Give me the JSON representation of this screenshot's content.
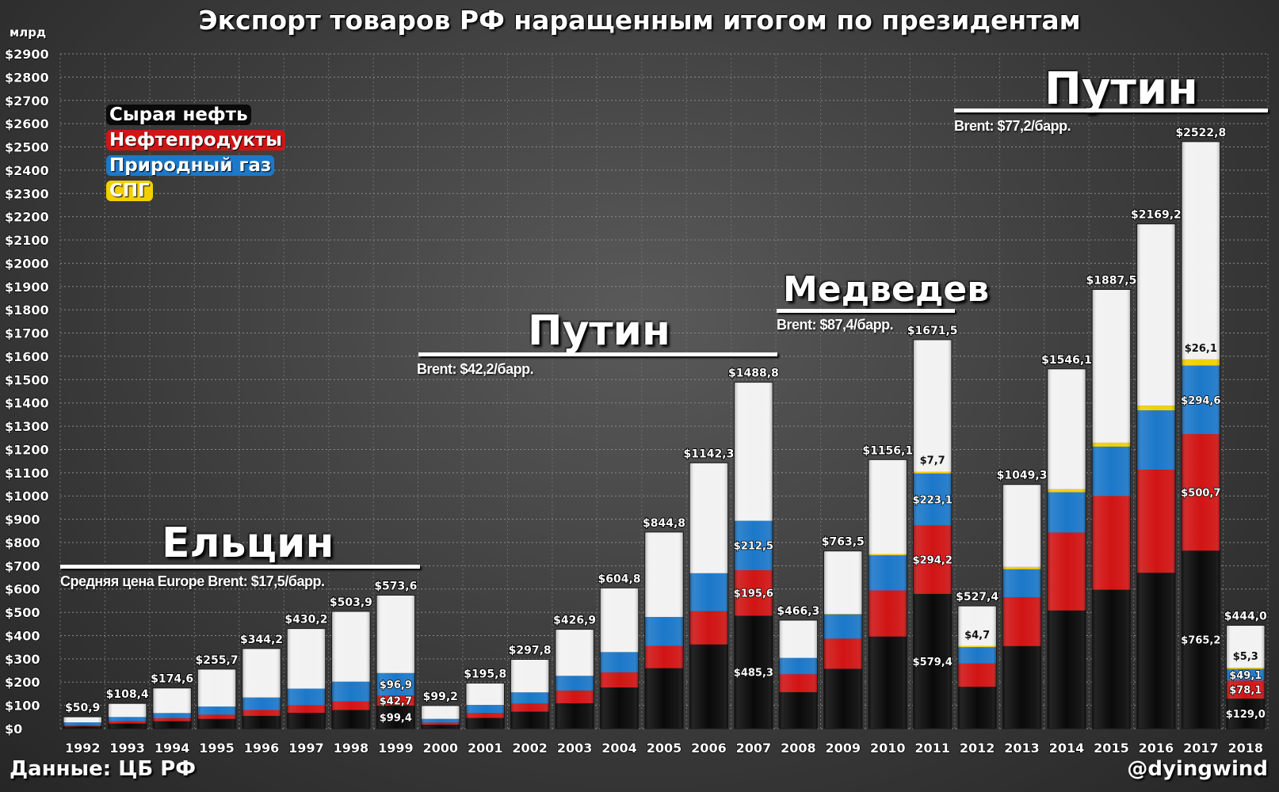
{
  "title": "Экспорт товаров РФ наращенным итогом по президентам",
  "unit_label": "млрд",
  "legend": [
    {
      "label": "Сырая нефть",
      "color": "#0a0a0a"
    },
    {
      "label": "Нефтепродукты",
      "color": "#d11414"
    },
    {
      "label": "Природный газ",
      "color": "#1c78c9"
    },
    {
      "label": "СПГ",
      "color": "#f2d000"
    }
  ],
  "eras": [
    {
      "name": "Ельцин",
      "brent": "Средняя цена Europe Brent: $17,5/барр.",
      "from": "1992",
      "to": "1999"
    },
    {
      "name": "Путин",
      "brent": "Brent: $42,2/барр.",
      "from": "2000",
      "to": "2007"
    },
    {
      "name": "Медведев",
      "brent": "Brent: $87,4/барр.",
      "from": "2008",
      "to": "2011"
    },
    {
      "name": "Путин",
      "brent": "Brent: $77,2/барр.",
      "from": "2012",
      "to": "2018"
    }
  ],
  "footer": {
    "source": "Данные: ЦБ РФ",
    "author": "@dyingwind"
  },
  "chart_data": {
    "type": "bar",
    "stacked": true,
    "ylabel": "млрд",
    "ylim": [
      0,
      2900
    ],
    "yticks": [
      "$0",
      "$100",
      "$200",
      "$300",
      "$400",
      "$500",
      "$600",
      "$700",
      "$800",
      "$900",
      "$1000",
      "$1100",
      "$1200",
      "$1300",
      "$1400",
      "$1500",
      "$1600",
      "$1700",
      "$1800",
      "$1900",
      "$2000",
      "$2100",
      "$2200",
      "$2300",
      "$2400",
      "$2500",
      "$2600",
      "$2700",
      "$2800",
      "$2900"
    ],
    "categories": [
      "1992",
      "1993",
      "1994",
      "1995",
      "1996",
      "1997",
      "1998",
      "1999",
      "2000",
      "2001",
      "2002",
      "2003",
      "2004",
      "2005",
      "2006",
      "2007",
      "2008",
      "2009",
      "2010",
      "2011",
      "2012",
      "2013",
      "2014",
      "2015",
      "2016",
      "2017",
      "2018"
    ],
    "totals": [
      50.9,
      108.4,
      174.6,
      255.7,
      344.2,
      430.2,
      503.9,
      573.6,
      99.2,
      195.8,
      297.8,
      426.9,
      604.8,
      844.8,
      1142.3,
      1488.8,
      466.3,
      763.5,
      1156.1,
      1671.5,
      527.4,
      1049.3,
      1546.1,
      1887.5,
      2169.2,
      2522.8,
      444.0
    ],
    "total_labels": [
      "$50,9",
      "$108,4",
      "$174,6",
      "$255,7",
      "$344,2",
      "$430,2",
      "$503,9",
      "$573,6",
      "$99,2",
      "$195,8",
      "$297,8",
      "$426,9",
      "$604,8",
      "$844,8",
      "$1142,3",
      "$1488,8",
      "$466,3",
      "$763,5",
      "$1156,1",
      "$1671,5",
      "$527,4",
      "$1049,3",
      "$1546,1",
      "$1887,5",
      "$2169,2",
      "$2522,8",
      "$444,0"
    ],
    "series": [
      {
        "name": "Сырая нефть",
        "color": "#0a0a0a",
        "values": [
          10,
          22,
          32,
          42,
          55,
          68,
          80,
          99.4,
          17,
          46,
          73,
          109,
          177,
          260,
          362,
          485.3,
          157,
          257,
          396,
          579.4,
          180,
          355,
          508,
          597,
          670,
          765.2,
          129.0
        ]
      },
      {
        "name": "Нефтепродукты",
        "color": "#d11414",
        "values": [
          5,
          10,
          13,
          18,
          25,
          33,
          37,
          42.7,
          9,
          21,
          35,
          55,
          65,
          96,
          143,
          195.6,
          77,
          130,
          198,
          294.2,
          100,
          210,
          335,
          403,
          443,
          500.7,
          78.1
        ]
      },
      {
        "name": "Природный газ",
        "color": "#1c78c9",
        "values": [
          12,
          18,
          22,
          35,
          54,
          71,
          85,
          96.9,
          16,
          35,
          48,
          63,
          87,
          124,
          163,
          212.5,
          70,
          104,
          151,
          223.1,
          70,
          120,
          173,
          212,
          255,
          294.6,
          49.1
        ]
      },
      {
        "name": "СПГ",
        "color": "#f2d000",
        "values": [
          0,
          0,
          0,
          0,
          0,
          0,
          0,
          0,
          0,
          0,
          0,
          0,
          0,
          0,
          0,
          0,
          0,
          2,
          5,
          7.7,
          4.7,
          10,
          13,
          17,
          20,
          26.1,
          5.3
        ]
      },
      {
        "name": "",
        "color": "#f2f2f2",
        "values": [
          23.9,
          58.4,
          107.6,
          160.7,
          210.2,
          258.2,
          301.9,
          334.6,
          57.2,
          93.8,
          141.8,
          199.9,
          275.8,
          364.8,
          474.3,
          595.4,
          162.3,
          270.5,
          406.1,
          567.1,
          172.7,
          354.3,
          517.1,
          658.5,
          781.2,
          936.2,
          182.5
        ]
      }
    ],
    "segment_labels": [
      {
        "category": "1999",
        "series": "Сырая нефть",
        "text": "$99,4"
      },
      {
        "category": "1999",
        "series": "Нефтепродукты",
        "text": "$42,7"
      },
      {
        "category": "1999",
        "series": "Природный газ",
        "text": "$96,9"
      },
      {
        "category": "2007",
        "series": "Сырая нефть",
        "text": "$485,3"
      },
      {
        "category": "2007",
        "series": "Нефтепродукты",
        "text": "$195,6"
      },
      {
        "category": "2007",
        "series": "Природный газ",
        "text": "$212,5"
      },
      {
        "category": "2011",
        "series": "Сырая нефть",
        "text": "$579,4"
      },
      {
        "category": "2011",
        "series": "Нефтепродукты",
        "text": "$294,2"
      },
      {
        "category": "2011",
        "series": "Природный газ",
        "text": "$223,1"
      },
      {
        "category": "2011",
        "series": "СПГ",
        "text": "$7,7"
      },
      {
        "category": "2012",
        "series": "СПГ",
        "text": "$4,7"
      },
      {
        "category": "2017",
        "series": "Сырая нефть",
        "text": "$765,2"
      },
      {
        "category": "2017",
        "series": "Нефтепродукты",
        "text": "$500,7"
      },
      {
        "category": "2017",
        "series": "Природный газ",
        "text": "$294,6"
      },
      {
        "category": "2017",
        "series": "СПГ",
        "text": "$26,1"
      },
      {
        "category": "2018",
        "series": "Сырая нефть",
        "text": "$129,0"
      },
      {
        "category": "2018",
        "series": "Нефтепродукты",
        "text": "$78,1"
      },
      {
        "category": "2018",
        "series": "Природный газ",
        "text": "$49,1"
      },
      {
        "category": "2018",
        "series": "СПГ",
        "text": "$5,3"
      }
    ],
    "grid": true,
    "legend_position": "top-left"
  }
}
